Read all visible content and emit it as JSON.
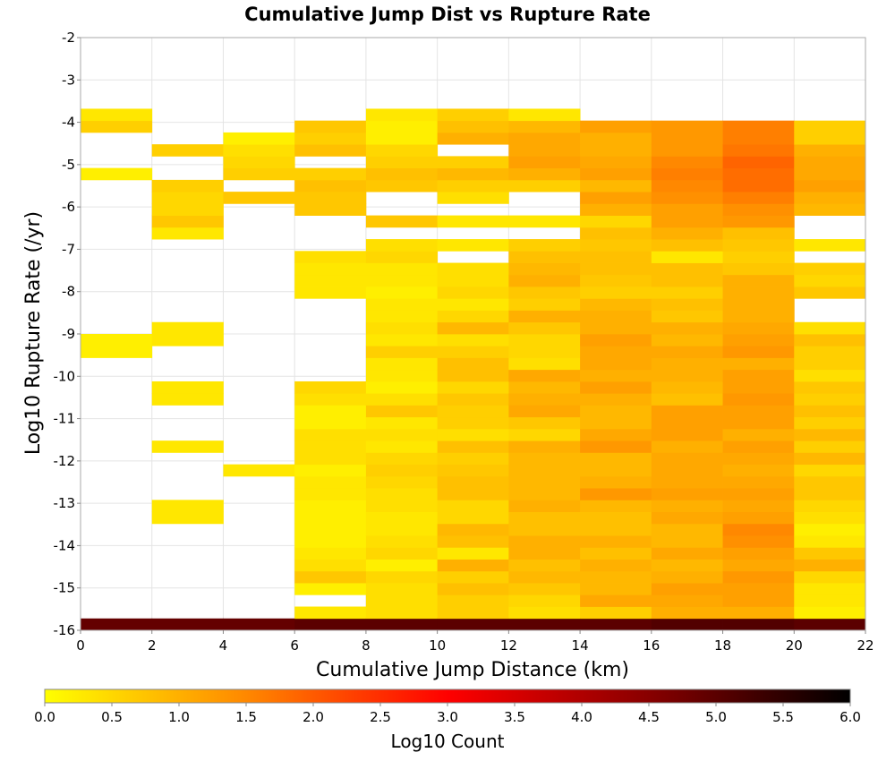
{
  "chart_data": {
    "type": "heatmap",
    "title": "Cumulative Jump Dist vs Rupture Rate",
    "xlabel": "Cumulative Jump Distance (km)",
    "ylabel": "Log10 Rupture Rate (/yr)",
    "xlim": [
      0,
      22
    ],
    "ylim": [
      -16,
      -2
    ],
    "x_ticks": [
      "0",
      "2",
      "4",
      "6",
      "8",
      "10",
      "12",
      "14",
      "16",
      "18",
      "20",
      "22"
    ],
    "y_ticks": [
      "-2",
      "-3",
      "-4",
      "-5",
      "-6",
      "-7",
      "-8",
      "-9",
      "-10",
      "-11",
      "-12",
      "-13",
      "-14",
      "-15",
      "-16"
    ],
    "grid": true,
    "x_bin_width_km": 2,
    "y_bin_height": 0.28,
    "y_bin_start": -16.0,
    "colorbar": {
      "label": "Log10 Count",
      "range": [
        0.0,
        6.0
      ],
      "ticks": [
        "0.0",
        "0.5",
        "1.0",
        "1.5",
        "2.0",
        "2.5",
        "3.0",
        "3.5",
        "4.0",
        "4.5",
        "5.0",
        "5.5",
        "6.0"
      ],
      "colors": [
        "#ffff00",
        "#ff8800",
        "#ff0000",
        "#880000",
        "#000000"
      ],
      "placement": "bottom"
    },
    "columns": [
      {
        "x_start": 0,
        "bins": {
          "0": 4.9,
          "23": 0.2,
          "24": 0.2,
          "38": 0.2,
          "42": 0.6,
          "43": 0.3
        }
      },
      {
        "x_start": 2,
        "bins": {
          "0": 4.9,
          "9": 0.3,
          "10": 0.3,
          "15": 0.3,
          "19": 0.3,
          "20": 0.3,
          "24": 0.3,
          "25": 0.3,
          "33": 0.3,
          "34": 0.7,
          "35": 0.5,
          "36": 0.5,
          "37": 0.6,
          "40": 0.6
        }
      },
      {
        "x_start": 4,
        "bins": {
          "0": 4.9,
          "13": 0.3,
          "36": 0.7,
          "38": 0.6,
          "39": 0.5,
          "40": 0.4,
          "41": 0.2
        }
      },
      {
        "x_start": 6,
        "bins": {
          "0": 5.0,
          "1": 0.3,
          "3": 0.2,
          "4": 0.7,
          "5": 0.4,
          "6": 0.3,
          "7": 0.2,
          "8": 0.2,
          "9": 0.2,
          "10": 0.2,
          "11": 0.3,
          "12": 0.3,
          "13": 0.2,
          "14": 0.4,
          "15": 0.4,
          "16": 0.4,
          "17": 0.2,
          "18": 0.2,
          "19": 0.4,
          "20": 0.5,
          "28": 0.3,
          "29": 0.3,
          "30": 0.3,
          "31": 0.4,
          "35": 0.7,
          "36": 0.7,
          "37": 0.8,
          "38": 0.6,
          "40": 0.8,
          "41": 0.6,
          "42": 0.7
        }
      },
      {
        "x_start": 8,
        "bins": {
          "0": 5.0,
          "1": 0.4,
          "2": 0.4,
          "3": 0.4,
          "4": 0.5,
          "5": 0.2,
          "6": 0.5,
          "7": 0.4,
          "8": 0.3,
          "9": 0.3,
          "10": 0.4,
          "11": 0.4,
          "12": 0.5,
          "13": 0.6,
          "14": 0.5,
          "15": 0.3,
          "16": 0.4,
          "17": 0.3,
          "18": 0.7,
          "19": 0.4,
          "20": 0.2,
          "21": 0.3,
          "22": 0.3,
          "23": 0.6,
          "24": 0.3,
          "25": 0.4,
          "26": 0.3,
          "27": 0.3,
          "28": 0.2,
          "29": 0.3,
          "30": 0.3,
          "31": 0.5,
          "32": 0.4,
          "34": 0.7,
          "37": 0.7,
          "38": 0.8,
          "39": 0.6,
          "40": 0.5,
          "41": 0.2,
          "42": 0.2,
          "43": 0.3
        }
      },
      {
        "x_start": 10,
        "bins": {
          "0": 5.0,
          "1": 0.6,
          "2": 0.6,
          "3": 0.8,
          "4": 0.6,
          "5": 1.0,
          "6": 0.3,
          "7": 0.8,
          "8": 0.9,
          "9": 0.5,
          "10": 0.5,
          "11": 0.8,
          "12": 0.8,
          "13": 0.7,
          "14": 0.6,
          "15": 0.8,
          "16": 0.4,
          "17": 0.6,
          "18": 0.6,
          "19": 0.7,
          "20": 0.5,
          "21": 0.8,
          "22": 0.8,
          "23": 0.6,
          "24": 0.4,
          "25": 0.9,
          "26": 0.5,
          "27": 0.3,
          "28": 0.5,
          "29": 0.4,
          "30": 0.4,
          "32": 0.3,
          "34": 0.3,
          "36": 0.4,
          "37": 0.6,
          "38": 0.9,
          "39": 0.6,
          "41": 1.0,
          "42": 0.8,
          "43": 0.6
        }
      },
      {
        "x_start": 12,
        "bins": {
          "0": 5.0,
          "1": 0.4,
          "2": 0.5,
          "3": 0.7,
          "4": 0.9,
          "5": 0.8,
          "6": 1.0,
          "7": 1.0,
          "8": 0.8,
          "9": 0.8,
          "10": 1.0,
          "11": 0.9,
          "12": 0.9,
          "13": 0.9,
          "14": 0.9,
          "15": 1.0,
          "16": 0.5,
          "17": 0.7,
          "18": 1.1,
          "19": 1.0,
          "20": 0.9,
          "21": 1.1,
          "22": 0.4,
          "23": 0.5,
          "24": 0.5,
          "25": 0.7,
          "26": 1.0,
          "27": 0.6,
          "28": 0.7,
          "29": 1.0,
          "30": 0.9,
          "31": 0.8,
          "32": 0.6,
          "34": 0.3,
          "37": 0.6,
          "38": 1.0,
          "39": 1.2,
          "40": 1.1,
          "41": 1.1,
          "42": 0.9,
          "43": 0.3
        }
      },
      {
        "x_start": 14,
        "bins": {
          "0": 5.0,
          "1": 0.6,
          "2": 1.1,
          "3": 0.9,
          "4": 0.9,
          "5": 1.0,
          "6": 0.8,
          "7": 1.0,
          "8": 0.8,
          "9": 0.8,
          "10": 0.9,
          "11": 1.3,
          "12": 1.0,
          "13": 0.9,
          "14": 0.9,
          "15": 1.3,
          "16": 1.1,
          "17": 0.9,
          "18": 0.9,
          "19": 1.0,
          "20": 1.2,
          "21": 1.0,
          "22": 1.1,
          "23": 1.1,
          "24": 1.2,
          "25": 1.0,
          "26": 1.0,
          "27": 0.9,
          "28": 0.6,
          "29": 0.7,
          "30": 0.8,
          "31": 0.8,
          "32": 0.7,
          "33": 0.8,
          "34": 0.5,
          "35": 1.0,
          "36": 1.2,
          "37": 0.9,
          "38": 1.2,
          "39": 1.1,
          "40": 1.0,
          "41": 1.0,
          "42": 1.2
        }
      },
      {
        "x_start": 16,
        "bins": {
          "0": 5.1,
          "1": 1.0,
          "2": 1.1,
          "3": 1.2,
          "4": 1.0,
          "5": 0.9,
          "6": 1.1,
          "7": 0.9,
          "8": 0.9,
          "9": 1.1,
          "10": 1.0,
          "11": 1.2,
          "12": 1.1,
          "13": 1.1,
          "14": 1.1,
          "15": 1.0,
          "16": 1.2,
          "17": 1.2,
          "18": 1.2,
          "19": 0.8,
          "20": 0.9,
          "21": 1.0,
          "22": 1.0,
          "23": 1.1,
          "24": 0.9,
          "25": 1.0,
          "26": 0.7,
          "27": 0.8,
          "28": 0.6,
          "29": 0.8,
          "30": 0.8,
          "31": 0.3,
          "32": 0.8,
          "33": 1.0,
          "34": 1.2,
          "35": 1.2,
          "36": 1.4,
          "37": 1.5,
          "38": 1.6,
          "39": 1.5,
          "40": 1.3,
          "41": 1.3,
          "42": 1.3
        }
      },
      {
        "x_start": 18,
        "bins": {
          "0": 5.1,
          "1": 1.0,
          "2": 1.2,
          "3": 1.2,
          "4": 1.3,
          "5": 1.1,
          "6": 1.2,
          "7": 1.4,
          "8": 1.5,
          "9": 1.2,
          "10": 1.1,
          "11": 1.2,
          "12": 1.1,
          "13": 1.0,
          "14": 1.1,
          "15": 1.2,
          "16": 1.0,
          "17": 1.2,
          "18": 1.2,
          "19": 1.3,
          "20": 1.2,
          "21": 1.2,
          "22": 1.0,
          "23": 1.3,
          "24": 1.2,
          "25": 1.1,
          "26": 1.0,
          "27": 1.0,
          "28": 1.0,
          "29": 1.0,
          "30": 0.7,
          "31": 0.6,
          "32": 0.7,
          "33": 0.8,
          "34": 1.3,
          "35": 1.4,
          "36": 1.6,
          "37": 1.8,
          "38": 1.8,
          "39": 1.9,
          "40": 1.7,
          "41": 1.6,
          "42": 1.6
        }
      },
      {
        "x_start": 20,
        "bins": {
          "0": 5.0,
          "1": 0.2,
          "2": 0.3,
          "3": 0.3,
          "4": 0.5,
          "5": 1.0,
          "6": 0.7,
          "7": 0.3,
          "8": 0.2,
          "9": 0.4,
          "10": 0.5,
          "11": 0.7,
          "12": 0.7,
          "13": 0.5,
          "14": 0.9,
          "15": 0.6,
          "16": 0.9,
          "17": 0.6,
          "18": 0.8,
          "19": 0.6,
          "20": 0.7,
          "21": 0.4,
          "22": 0.6,
          "23": 0.6,
          "24": 0.8,
          "25": 0.4,
          "28": 0.7,
          "29": 0.5,
          "30": 0.6,
          "32": 0.3,
          "35": 0.9,
          "36": 1.0,
          "37": 1.2,
          "38": 1.1,
          "39": 1.1,
          "40": 1.0,
          "41": 0.6,
          "42": 0.6
        }
      }
    ]
  }
}
